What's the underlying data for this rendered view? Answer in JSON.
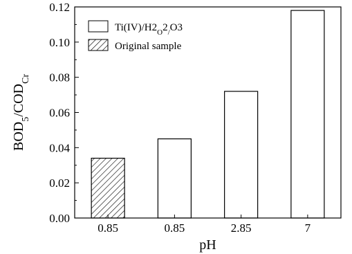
{
  "chart_data": {
    "type": "bar",
    "categories": [
      "0.85",
      "0.85",
      "2.85",
      "7"
    ],
    "series": [
      {
        "name": "Original sample",
        "values": [
          0.034,
          null,
          null,
          null
        ],
        "pattern": "hatched"
      },
      {
        "name": "Ti(IV)/H2O2/O3",
        "values": [
          null,
          0.045,
          0.072,
          0.118
        ],
        "pattern": "open"
      }
    ],
    "xlabel": "pH",
    "ylabel": "BOD5/CODCr",
    "ylim": [
      0,
      0.12
    ],
    "yticks": [
      0.0,
      0.02,
      0.04,
      0.06,
      0.08,
      0.1,
      0.12
    ],
    "ytick_labels": [
      "0.00",
      "0.02",
      "0.04",
      "0.06",
      "0.08",
      "0.10",
      "0.12"
    ],
    "legend_position": "top-left",
    "grid": false,
    "colors": {
      "bar_stroke": "#000000",
      "bar_fill": "#ffffff",
      "hatch": "#000000"
    }
  }
}
